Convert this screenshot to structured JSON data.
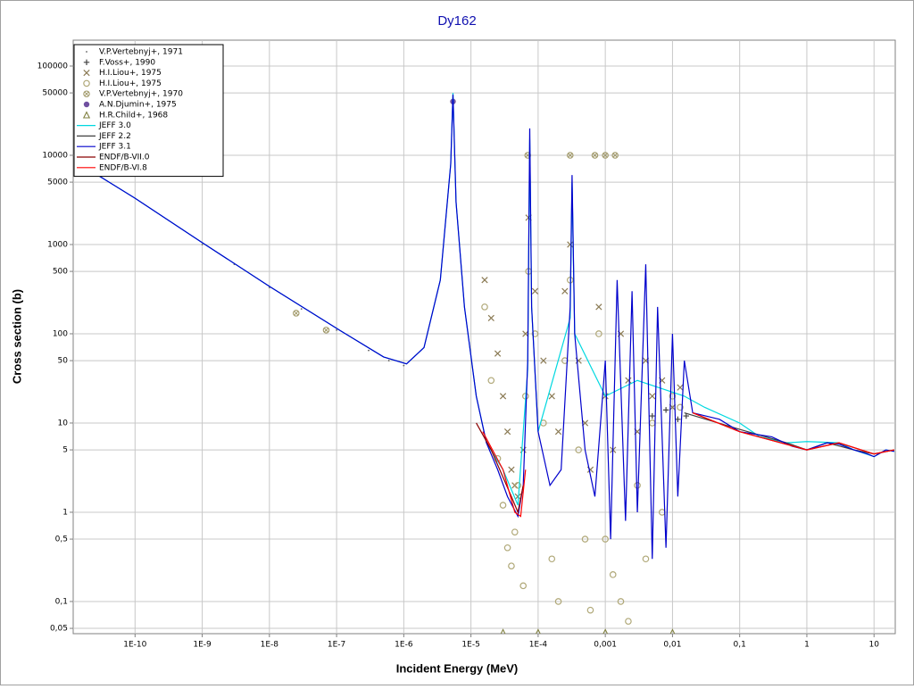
{
  "chart_data": {
    "type": "line",
    "title": "Dy162",
    "x_label": "Incident Energy (MeV)",
    "y_label": "Cross section (b)",
    "log_x": true,
    "log_y": true,
    "grid": true,
    "legend": "upper left",
    "xlim": [
      1.2e-11,
      20.7
    ],
    "ylim": [
      0.0436,
      195000
    ],
    "xticks": [
      {
        "value": 1e-10,
        "label": "1E-10"
      },
      {
        "value": 1e-09,
        "label": "1E-9"
      },
      {
        "value": 1e-08,
        "label": "1E-8"
      },
      {
        "value": 1e-07,
        "label": "1E-7"
      },
      {
        "value": 1e-06,
        "label": "1E-6"
      },
      {
        "value": 1e-05,
        "label": "1E-5"
      },
      {
        "value": 0.0001,
        "label": "1E-4"
      },
      {
        "value": 0.001,
        "label": "0,001"
      },
      {
        "value": 0.01,
        "label": "0,01"
      },
      {
        "value": 0.1,
        "label": "0,1"
      },
      1,
      10
    ],
    "yticks": [
      {
        "value": 0.05,
        "label": "0,05"
      },
      {
        "value": 0.1,
        "label": "0,1"
      },
      {
        "value": 0.5,
        "label": "0,5"
      },
      1,
      5,
      10,
      50,
      100,
      500,
      1000,
      5000,
      10000,
      50000,
      100000
    ],
    "series": [
      {
        "name": "V.P.Vertebnyj+, 1971",
        "mode": "markers",
        "marker": "dot",
        "color": "#606060",
        "x": [
          1e-09,
          3e-09,
          1e-08,
          3e-08,
          1e-07,
          3e-07,
          6e-07,
          1e-06
        ],
        "values": [
          1000,
          600,
          330,
          190,
          110,
          65,
          50,
          44
        ]
      },
      {
        "name": "F.Voss+, 1990",
        "mode": "markers",
        "marker": "plus",
        "color": "#404040",
        "x": [
          0.005,
          0.008,
          0.012,
          0.016
        ],
        "values": [
          12,
          14,
          11,
          12
        ]
      },
      {
        "name": "H.I.Liou+, 1975",
        "mode": "markers",
        "marker": "x",
        "color": "#8b7b55",
        "x": [
          1.6e-05,
          2e-05,
          2.5e-05,
          3e-05,
          3.5e-05,
          4e-05,
          4.5e-05,
          5e-05,
          6e-05,
          6.5e-05,
          7.2e-05,
          9e-05,
          0.00012,
          0.00016,
          0.0002,
          0.00025,
          0.0003,
          0.0004,
          0.0005,
          0.0006,
          0.0008,
          0.001,
          0.0013,
          0.0017,
          0.0022,
          0.003,
          0.004,
          0.005,
          0.007,
          0.01,
          0.013
        ],
        "values": [
          400,
          150,
          60,
          20,
          8,
          3,
          2,
          1.5,
          5,
          100,
          2000,
          300,
          50,
          20,
          8,
          300,
          1000,
          50,
          10,
          3,
          200,
          20,
          5,
          100,
          30,
          8,
          50,
          20,
          30,
          15,
          25
        ]
      },
      {
        "name": "H.I.Liou+, 1975",
        "mode": "markers",
        "marker": "o",
        "color": "#b0a878",
        "x": [
          1.6e-05,
          2e-05,
          2.5e-05,
          3e-05,
          3.5e-05,
          4e-05,
          4.5e-05,
          5e-05,
          6e-05,
          6.5e-05,
          7.2e-05,
          9e-05,
          0.00012,
          0.00016,
          0.0002,
          0.00025,
          0.0003,
          0.0004,
          0.0005,
          0.0006,
          0.0008,
          0.001,
          0.0013,
          0.0017,
          0.0022,
          0.003,
          0.004,
          0.005,
          0.007,
          0.01,
          0.013
        ],
        "values": [
          200,
          30,
          4,
          1.2,
          0.4,
          0.25,
          0.6,
          2,
          0.15,
          20,
          500,
          100,
          10,
          0.3,
          0.1,
          50,
          400,
          5,
          0.5,
          0.08,
          100,
          0.5,
          0.2,
          0.1,
          0.06,
          2,
          0.3,
          10,
          1,
          20,
          15
        ]
      },
      {
        "name": "V.P.Vertebnyj+, 1970",
        "mode": "markers",
        "marker": "circlex",
        "color": "#a09868",
        "x": [
          2.5e-08,
          7e-08,
          7e-05,
          0.0003,
          0.0007,
          0.001,
          0.0014
        ],
        "values": [
          170,
          110,
          10000,
          10000,
          10000,
          10000,
          10000
        ]
      },
      {
        "name": "A.N.Djumin+, 1975",
        "mode": "markers",
        "marker": "filled",
        "color": "#7050a0",
        "x": [
          5.4e-06
        ],
        "values": [
          40000
        ]
      },
      {
        "name": "H.R.Child+, 1968",
        "mode": "markers",
        "marker": "triangle",
        "color": "#808040",
        "x": [
          3e-05,
          0.0001,
          0.001,
          0.01
        ],
        "values": [
          0.045,
          0.045,
          0.045,
          0.045
        ]
      },
      {
        "name": "JEFF 3.0",
        "mode": "lines",
        "color": "#00d8e0",
        "x": [
          1.5e-11,
          1e-10,
          1e-09,
          1e-08,
          1e-07,
          5e-07,
          1.1e-06,
          2e-06,
          3.5e-06,
          5e-06,
          5.4e-06,
          6e-06,
          8e-06,
          1.2e-05,
          1.7e-05,
          3e-05,
          5e-05,
          7e-05,
          7.5e-05,
          8e-05,
          0.0001,
          0.0003,
          0.00032,
          0.00035,
          0.001,
          0.003,
          0.015,
          0.03,
          0.1,
          0.2,
          0.5,
          1,
          3,
          5,
          10,
          15,
          20
        ],
        "values": [
          8000,
          3300,
          1050,
          340,
          115,
          55,
          46,
          70,
          400,
          8000,
          50000,
          3000,
          200,
          20,
          6,
          3,
          1.2,
          40,
          15000,
          200,
          8,
          150,
          5000,
          100,
          20,
          30,
          20,
          15,
          10,
          7,
          6,
          6.2,
          6,
          5,
          4.2,
          5,
          4.8
        ]
      },
      {
        "name": "JEFF 2.2",
        "mode": "lines",
        "color": "#404040",
        "x": [
          0.015,
          0.1,
          0.5,
          1,
          2,
          5,
          10,
          20
        ],
        "values": [
          13,
          8.5,
          6,
          5,
          6,
          5,
          4.5,
          5
        ]
      },
      {
        "name": "JEFF 3.1",
        "mode": "lines",
        "color": "#0000cc",
        "x": [
          1.5e-11,
          1e-10,
          1e-09,
          1e-08,
          1e-07,
          5e-07,
          1.1e-06,
          2e-06,
          3.5e-06,
          5e-06,
          5.4e-06,
          6e-06,
          8e-06,
          1.2e-05,
          1.7e-05,
          2.5e-05,
          3.5e-05,
          5e-05,
          6e-05,
          7e-05,
          7.5e-05,
          8e-05,
          0.0001,
          0.00015,
          0.00022,
          0.0003,
          0.00032,
          0.00035,
          0.0005,
          0.0007,
          0.001,
          0.0012,
          0.0015,
          0.002,
          0.0025,
          0.003,
          0.004,
          0.005,
          0.006,
          0.008,
          0.01,
          0.012,
          0.015,
          0.02,
          0.05,
          0.1,
          0.3,
          0.6,
          1,
          2,
          3,
          5,
          8,
          10,
          15,
          20
        ],
        "values": [
          8000,
          3300,
          1050,
          340,
          115,
          55,
          46,
          70,
          400,
          8000,
          48000,
          3000,
          200,
          20,
          6,
          3,
          1.5,
          0.9,
          2,
          50,
          20000,
          200,
          8,
          2,
          3,
          200,
          6000,
          100,
          5,
          1.5,
          50,
          0.5,
          400,
          0.8,
          300,
          1,
          600,
          0.3,
          200,
          0.4,
          100,
          1.5,
          50,
          13,
          11,
          8,
          7,
          5.5,
          5,
          6,
          5.8,
          5,
          4.5,
          4.2,
          5,
          4.8
        ]
      },
      {
        "name": "ENDF/B-VII.0",
        "mode": "lines",
        "color": "#8b0000",
        "x": [
          1.2e-05,
          2e-05,
          4e-05,
          5e-05,
          6e-05,
          0.001,
          0.02,
          0.1,
          1,
          3,
          10,
          20
        ],
        "values": [
          10,
          5,
          1.5,
          1,
          2,
          null,
          13,
          8,
          5,
          6,
          4.5,
          5
        ]
      },
      {
        "name": "ENDF/B-VI.8",
        "mode": "lines",
        "color": "#ff0000",
        "x": [
          1.5e-05,
          3e-05,
          4.5e-05,
          5.5e-05,
          6.5e-05,
          0.0001,
          0.02,
          0.1,
          1,
          3,
          10,
          20
        ],
        "values": [
          8,
          3,
          1,
          0.9,
          3,
          null,
          13,
          8,
          5,
          6,
          4.5,
          5
        ]
      }
    ]
  }
}
